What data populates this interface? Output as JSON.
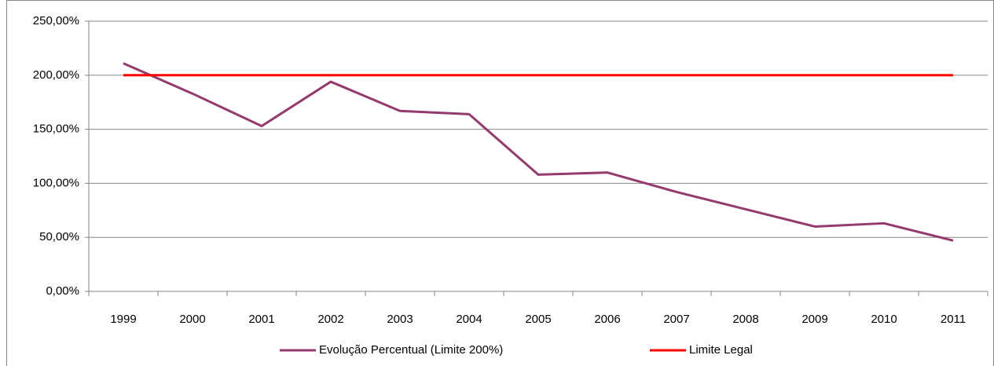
{
  "chart_data": {
    "type": "line",
    "categories": [
      "1999",
      "2000",
      "2001",
      "2002",
      "2003",
      "2004",
      "2005",
      "2006",
      "2007",
      "2008",
      "2009",
      "2010",
      "2011"
    ],
    "series": [
      {
        "name": "Evolução Percentual (Limite 200%)",
        "color": "#953a6c",
        "values": [
          211,
          183,
          153,
          194,
          167,
          164,
          108,
          110,
          92,
          76,
          60,
          63,
          47
        ]
      },
      {
        "name": "Limite Legal",
        "color": "#ff0000",
        "values": [
          200,
          200,
          200,
          200,
          200,
          200,
          200,
          200,
          200,
          200,
          200,
          200,
          200
        ]
      }
    ],
    "ylim": [
      0,
      250
    ],
    "yticks": [
      {
        "value": 0,
        "label": "0,00%"
      },
      {
        "value": 50,
        "label": "50,00%"
      },
      {
        "value": 100,
        "label": "100,00%"
      },
      {
        "value": 150,
        "label": "150,00%"
      },
      {
        "value": 200,
        "label": "200,00%"
      },
      {
        "value": 250,
        "label": "250,00%"
      }
    ],
    "grid": true,
    "legend": "bottom"
  }
}
